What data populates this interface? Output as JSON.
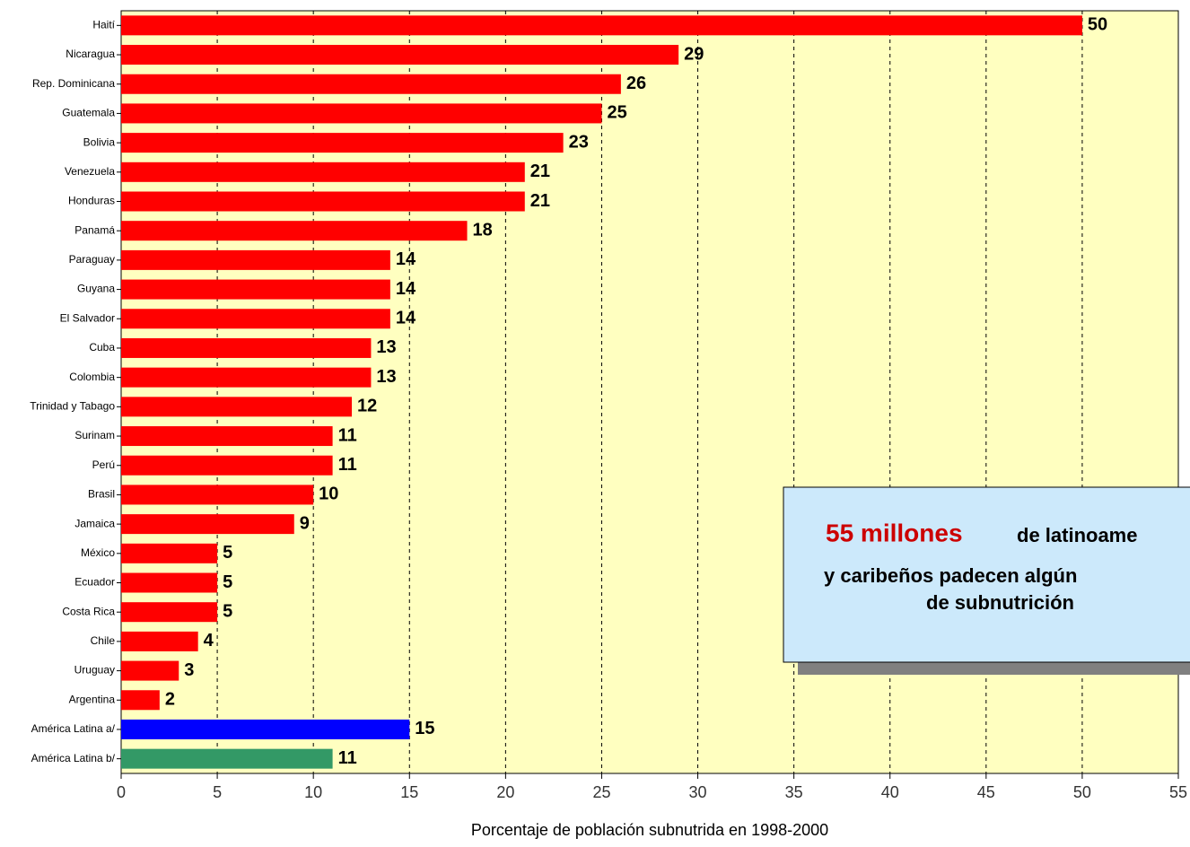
{
  "chart_data": {
    "type": "barh",
    "x_label": "Porcentaje de población subnutrida en 1998-2000",
    "categories": [
      "Haití",
      "Nicaragua",
      "Rep. Dominicana",
      "Guatemala",
      "Bolivia",
      "Venezuela",
      "Honduras",
      "Panamá",
      "Paraguay",
      "Guyana",
      "El Salvador",
      "Cuba",
      "Colombia",
      "Trinidad y Tabago",
      "Surinam",
      "Perú",
      "Brasil",
      "Jamaica",
      "México",
      "Ecuador",
      "Costa Rica",
      "Chile",
      "Uruguay",
      "Argentina",
      "América Latina a/",
      "América Latina b/"
    ],
    "values": [
      50,
      29,
      26,
      25,
      23,
      21,
      21,
      18,
      14,
      14,
      14,
      13,
      13,
      12,
      11,
      11,
      10,
      9,
      5,
      5,
      5,
      4,
      3,
      2,
      15,
      11
    ],
    "colors": [
      "#ff0000",
      "#ff0000",
      "#ff0000",
      "#ff0000",
      "#ff0000",
      "#ff0000",
      "#ff0000",
      "#ff0000",
      "#ff0000",
      "#ff0000",
      "#ff0000",
      "#ff0000",
      "#ff0000",
      "#ff0000",
      "#ff0000",
      "#ff0000",
      "#ff0000",
      "#ff0000",
      "#ff0000",
      "#ff0000",
      "#ff0000",
      "#ff0000",
      "#ff0000",
      "#ff0000",
      "#0000ff",
      "#339966"
    ],
    "xlim": [
      0,
      55
    ],
    "xticks": [
      0,
      5,
      10,
      15,
      20,
      25,
      30,
      35,
      40,
      45,
      50,
      55
    ],
    "grid": true,
    "annotation": {
      "highlight": "55 millones",
      "lines": [
        "de latinoame",
        "y caribeños padecen algún",
        "de subnutrición"
      ]
    }
  }
}
